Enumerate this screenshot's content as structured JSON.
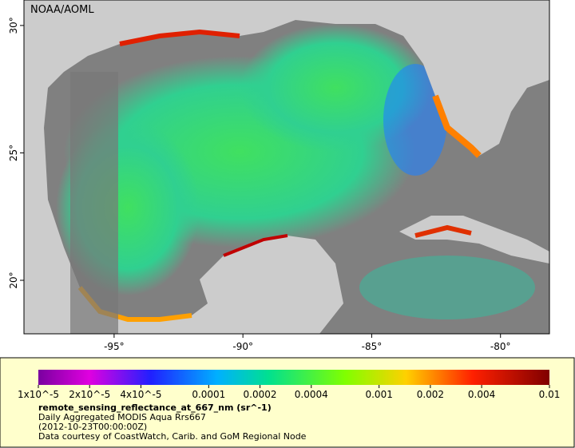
{
  "map": {
    "credit": "NOAA/AOML",
    "lon_range": [
      -98.5,
      -78.1
    ],
    "lat_range": [
      17.9,
      31
    ],
    "lon_ticks": [
      {
        "value": -95,
        "label": "-95°"
      },
      {
        "value": -90,
        "label": "-90°"
      },
      {
        "value": -85,
        "label": "-85°"
      },
      {
        "value": -80,
        "label": "-80°"
      }
    ],
    "lat_ticks": [
      {
        "value": 30,
        "label": "30°"
      },
      {
        "value": 25,
        "label": "25°"
      },
      {
        "value": 20,
        "label": "20°"
      }
    ]
  },
  "legend": {
    "colorbar_range": [
      1e-05,
      0.01
    ],
    "log_scale": true,
    "colorbar_ticks": [
      {
        "value": 1e-05,
        "label": "1x10^-5"
      },
      {
        "value": 2e-05,
        "label": "2x10^-5"
      },
      {
        "value": 4e-05,
        "label": "4x10^-5"
      },
      {
        "value": 0.0001,
        "label": "0.0001"
      },
      {
        "value": 0.0002,
        "label": "0.0002"
      },
      {
        "value": 0.0004,
        "label": "0.0004"
      },
      {
        "value": 0.001,
        "label": "0.001"
      },
      {
        "value": 0.002,
        "label": "0.002"
      },
      {
        "value": 0.004,
        "label": "0.004"
      },
      {
        "value": 0.01,
        "label": "0.01"
      }
    ],
    "variable": "remote_sensing_reflectance_at_667_nm (sr^-1)",
    "dataset": "Daily Aggregated MODIS Aqua Rrs667",
    "time": "(2012-10-23T00:00:00Z)",
    "source": "Data courtesy of CoastWatch, Carib. and GoM Regional Node"
  }
}
